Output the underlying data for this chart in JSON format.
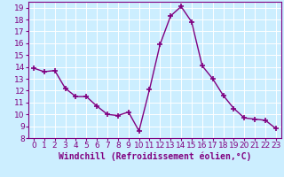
{
  "x": [
    0,
    1,
    2,
    3,
    4,
    5,
    6,
    7,
    8,
    9,
    10,
    11,
    12,
    13,
    14,
    15,
    16,
    17,
    18,
    19,
    20,
    21,
    22,
    23
  ],
  "y": [
    13.9,
    13.6,
    13.7,
    12.2,
    11.5,
    11.5,
    10.7,
    10.0,
    9.9,
    10.2,
    8.6,
    12.1,
    15.9,
    18.3,
    19.1,
    17.8,
    14.1,
    13.0,
    11.6,
    10.5,
    9.7,
    9.6,
    9.5,
    8.8
  ],
  "line_color": "#800080",
  "marker": "+",
  "marker_size": 4,
  "bg_color": "#cceeff",
  "grid_color": "#ffffff",
  "xlabel": "Windchill (Refroidissement éolien,°C)",
  "ylim": [
    8,
    19.5
  ],
  "xlim": [
    -0.5,
    23.5
  ],
  "yticks": [
    8,
    9,
    10,
    11,
    12,
    13,
    14,
    15,
    16,
    17,
    18,
    19
  ],
  "xticks": [
    0,
    1,
    2,
    3,
    4,
    5,
    6,
    7,
    8,
    9,
    10,
    11,
    12,
    13,
    14,
    15,
    16,
    17,
    18,
    19,
    20,
    21,
    22,
    23
  ],
  "tick_color": "#800080",
  "label_color": "#800080",
  "font_size": 6.5,
  "xlabel_fontsize": 7,
  "linewidth": 1.0,
  "marker_linewidth": 1.2
}
